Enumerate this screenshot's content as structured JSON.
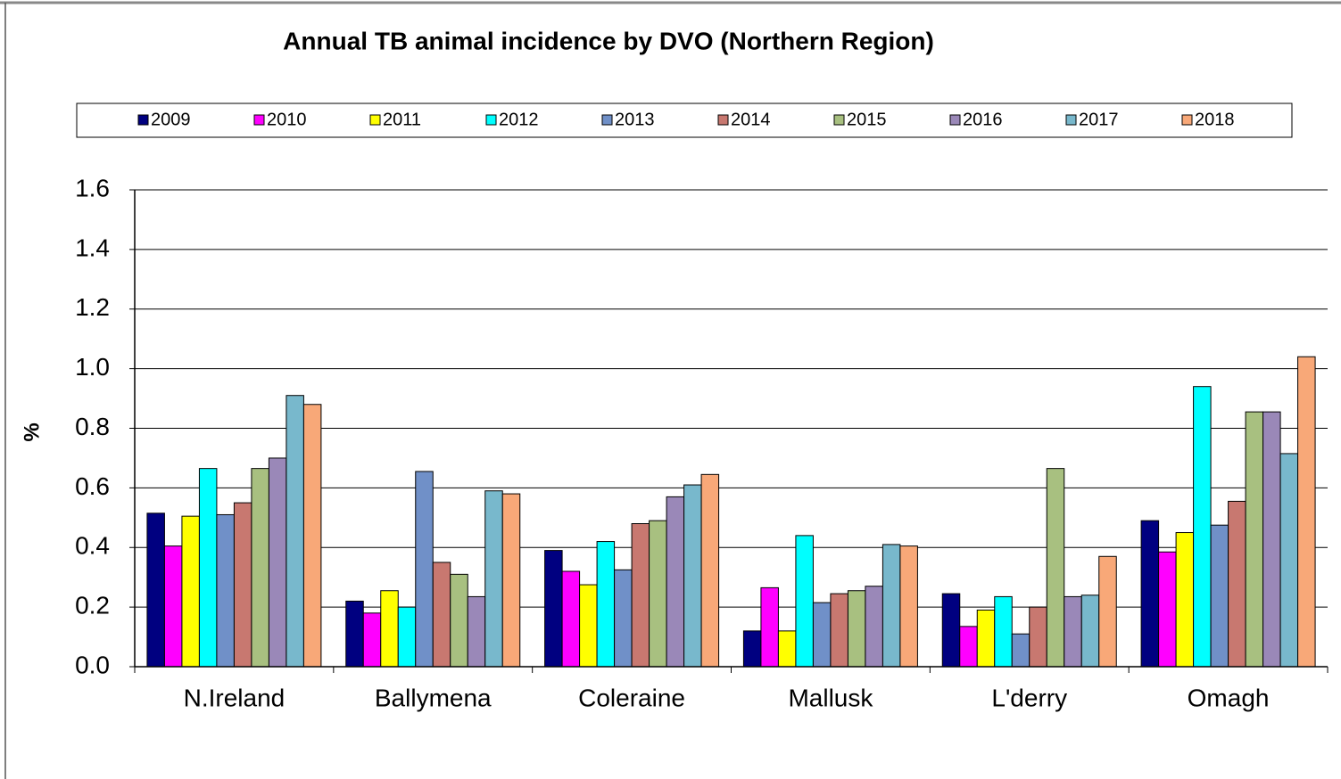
{
  "chart_data": {
    "type": "bar",
    "title": "Annual TB animal incidence by DVO (Northern Region)",
    "y_label": "%",
    "categories": [
      "N.Ireland",
      "Ballymena",
      "Coleraine",
      "Mallusk",
      "L'derry",
      "Omagh"
    ],
    "series": [
      {
        "name": "2009",
        "color": "#000080",
        "values": [
          0.515,
          0.22,
          0.39,
          0.12,
          0.245,
          0.49
        ]
      },
      {
        "name": "2010",
        "color": "#ff00ff",
        "values": [
          0.405,
          0.18,
          0.32,
          0.265,
          0.135,
          0.385
        ]
      },
      {
        "name": "2011",
        "color": "#ffff00",
        "values": [
          0.505,
          0.255,
          0.275,
          0.12,
          0.19,
          0.45
        ]
      },
      {
        "name": "2012",
        "color": "#00ffff",
        "values": [
          0.665,
          0.2,
          0.42,
          0.44,
          0.235,
          0.94
        ]
      },
      {
        "name": "2013",
        "color": "#7090c8",
        "values": [
          0.51,
          0.655,
          0.325,
          0.215,
          0.11,
          0.475
        ]
      },
      {
        "name": "2014",
        "color": "#c87870",
        "values": [
          0.55,
          0.35,
          0.48,
          0.245,
          0.2,
          0.555
        ]
      },
      {
        "name": "2015",
        "color": "#a8c080",
        "values": [
          0.665,
          0.31,
          0.49,
          0.255,
          0.665,
          0.855
        ]
      },
      {
        "name": "2016",
        "color": "#9a88b8",
        "values": [
          0.7,
          0.235,
          0.57,
          0.27,
          0.235,
          0.855
        ]
      },
      {
        "name": "2017",
        "color": "#78b8cc",
        "values": [
          0.91,
          0.59,
          0.61,
          0.41,
          0.24,
          0.715
        ]
      },
      {
        "name": "2018",
        "color": "#f8a878",
        "values": [
          0.88,
          0.58,
          0.645,
          0.405,
          0.37,
          1.04
        ]
      }
    ],
    "ylim": [
      0,
      1.6
    ],
    "yticks": [
      {
        "value": 0,
        "label": "0.0"
      },
      0.2,
      0.4,
      0.6,
      0.8,
      {
        "value": 1,
        "label": "1.0"
      },
      1.2,
      1.4,
      1.6
    ],
    "grid": true
  }
}
